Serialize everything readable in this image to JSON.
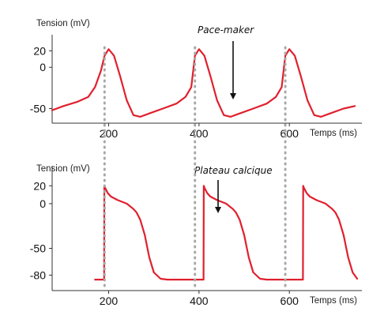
{
  "chart_data": [
    {
      "type": "line",
      "ylabel": "Tension (mV)",
      "xlabel": "Temps (ms)",
      "yticks": [
        20,
        0,
        -50
      ],
      "xticks": [
        200,
        400,
        600
      ],
      "xlim": [
        75,
        750
      ],
      "ylim": [
        -62,
        28
      ],
      "color": "#e0202e",
      "annotation": "Pace-maker",
      "series": [
        {
          "x": [
            75,
            100,
            130,
            155,
            170,
            183,
            191,
            200,
            212,
            225,
            240,
            255,
            270,
            290,
            320,
            350,
            370,
            383,
            391,
            400,
            412,
            425,
            440,
            455,
            470,
            490,
            520,
            550,
            570,
            583,
            591,
            600,
            612,
            625,
            640,
            655,
            670,
            690,
            720,
            745
          ],
          "y": [
            -52,
            -47,
            -42,
            -36,
            -24,
            -4,
            14,
            22,
            14,
            -10,
            -40,
            -58,
            -60,
            -56,
            -50,
            -44,
            -36,
            -24,
            14,
            22,
            14,
            -10,
            -40,
            -58,
            -60,
            -56,
            -50,
            -44,
            -36,
            -24,
            14,
            22,
            14,
            -10,
            -40,
            -58,
            -60,
            -56,
            -50,
            -47
          ]
        }
      ]
    },
    {
      "type": "line",
      "ylabel": "Tension (mV)",
      "xlabel": "Temps (ms)",
      "yticks": [
        20,
        0,
        -50,
        -80
      ],
      "xticks": [
        200,
        400,
        600
      ],
      "xlim": [
        75,
        750
      ],
      "ylim": [
        -92,
        30
      ],
      "color": "#e0202e",
      "annotation": "Plateau calcique",
      "series": [
        {
          "x": [
            170,
            190,
            190.5,
            192,
            198,
            205,
            220,
            240,
            255,
            262,
            270,
            280,
            290,
            300,
            315,
            330,
            370,
            410,
            410.5,
            412,
            418,
            425,
            440,
            460,
            475,
            482,
            490,
            500,
            510,
            520,
            535,
            550,
            590,
            630,
            630.5,
            632,
            638,
            645,
            660,
            680,
            695,
            702,
            710,
            720,
            730,
            740,
            750
          ],
          "y": [
            -85,
            -85,
            20,
            18,
            12,
            8,
            4,
            0,
            -6,
            -10,
            -18,
            -35,
            -60,
            -77,
            -84,
            -85,
            -85,
            -85,
            20,
            18,
            12,
            8,
            4,
            0,
            -6,
            -10,
            -18,
            -35,
            -60,
            -77,
            -84,
            -85,
            -85,
            -85,
            20,
            18,
            12,
            8,
            4,
            0,
            -6,
            -10,
            -18,
            -35,
            -60,
            -77,
            -84
          ]
        }
      ]
    }
  ]
}
